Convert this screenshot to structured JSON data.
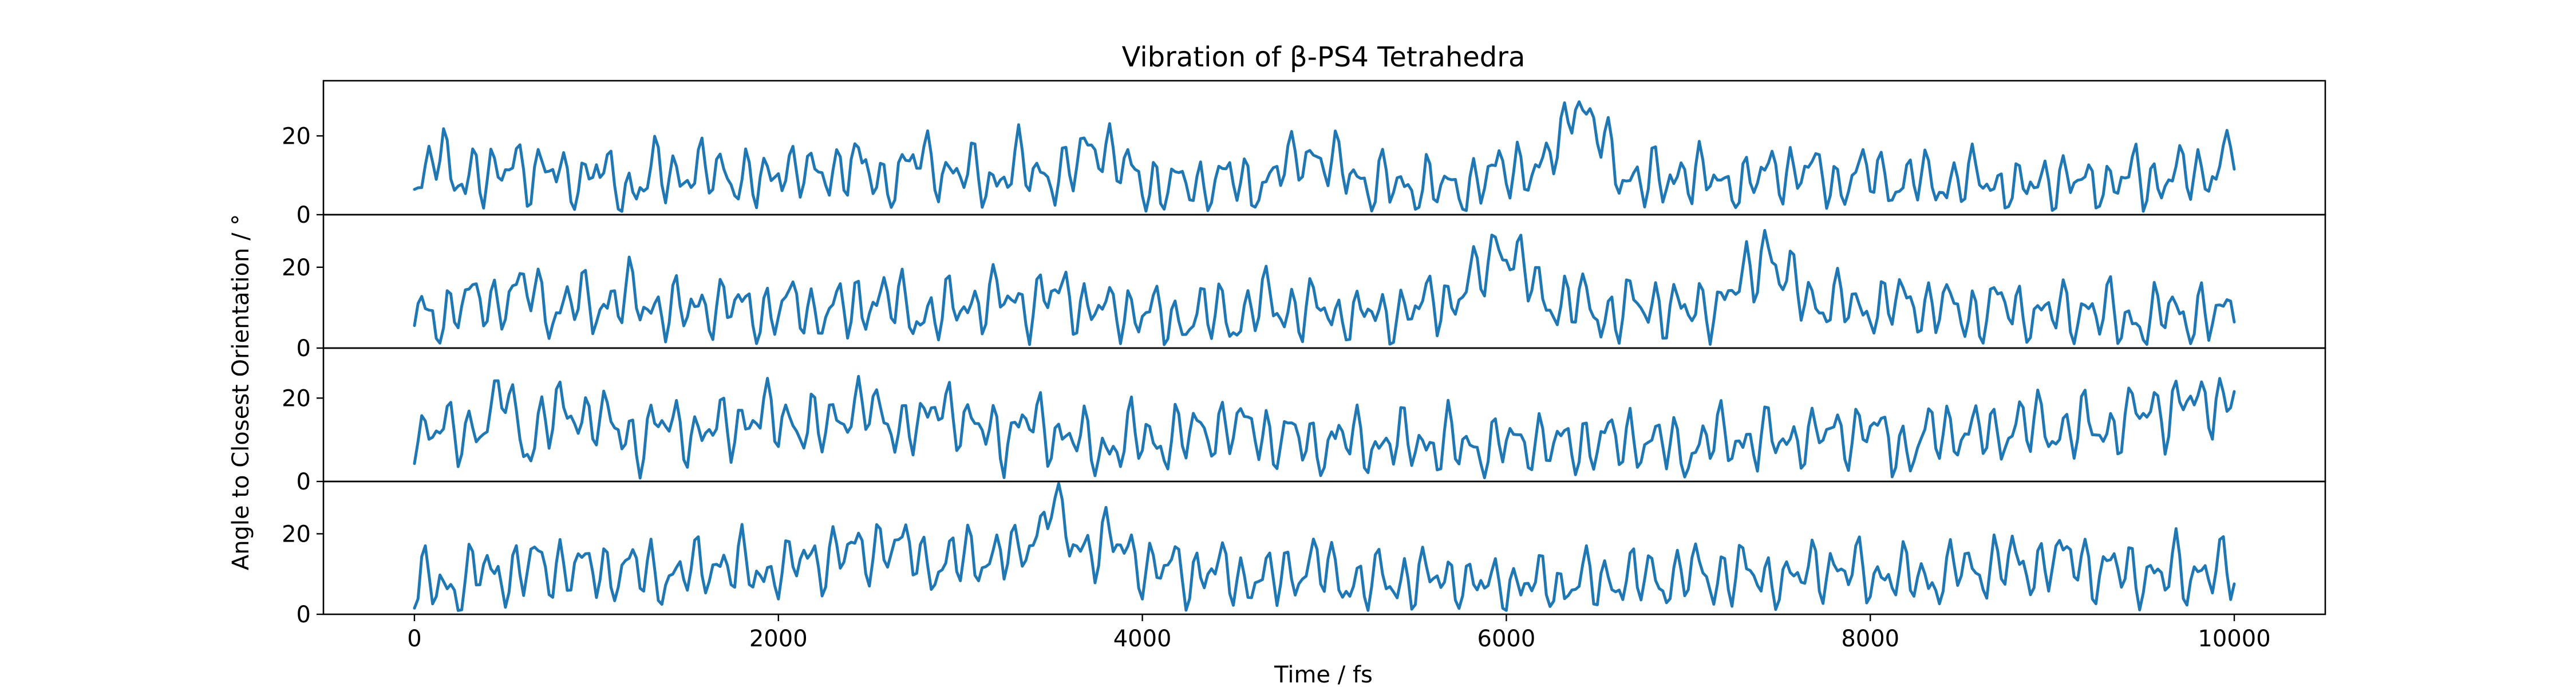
{
  "chart_data": {
    "type": "line",
    "title": "Vibration of β-PS4 Tetrahedra",
    "xlabel": "Time / fs",
    "ylabel": "Angle to Closest Orientation / °",
    "xlim": [
      -500,
      10500
    ],
    "x_ticks": [
      0,
      2000,
      4000,
      6000,
      8000,
      10000
    ],
    "x_tick_labels": [
      "0",
      "2000",
      "4000",
      "6000",
      "8000",
      "10000"
    ],
    "y_ticks": [
      0,
      20
    ],
    "y_tick_labels": [
      "0",
      "20"
    ],
    "grid": false,
    "legend": "none",
    "line_color": "#1f77b4",
    "x_step_fs": 20,
    "panels": [
      {
        "ylim": [
          0,
          34
        ],
        "anchors": [
          [
            0,
            10
          ],
          [
            100,
            12
          ],
          [
            150,
            19
          ],
          [
            200,
            7
          ],
          [
            300,
            12
          ],
          [
            450,
            7
          ],
          [
            550,
            16
          ],
          [
            650,
            9
          ],
          [
            800,
            12
          ],
          [
            900,
            7
          ],
          [
            1000,
            11
          ],
          [
            1200,
            7
          ],
          [
            1400,
            12
          ],
          [
            1600,
            9
          ],
          [
            1700,
            11
          ],
          [
            1900,
            8
          ],
          [
            2000,
            13
          ],
          [
            2200,
            9
          ],
          [
            2400,
            13
          ],
          [
            2600,
            8
          ],
          [
            2800,
            14
          ],
          [
            3000,
            10
          ],
          [
            3200,
            8
          ],
          [
            3400,
            12
          ],
          [
            3600,
            10
          ],
          [
            3750,
            18
          ],
          [
            3900,
            11
          ],
          [
            4000,
            8
          ],
          [
            4200,
            7
          ],
          [
            4400,
            9
          ],
          [
            4600,
            8
          ],
          [
            4800,
            12
          ],
          [
            4900,
            16
          ],
          [
            5000,
            13
          ],
          [
            5200,
            9
          ],
          [
            5400,
            7
          ],
          [
            5600,
            7
          ],
          [
            5800,
            8
          ],
          [
            6000,
            11
          ],
          [
            6200,
            12
          ],
          [
            6300,
            19
          ],
          [
            6380,
            31
          ],
          [
            6450,
            26
          ],
          [
            6500,
            21
          ],
          [
            6600,
            13
          ],
          [
            6700,
            10
          ],
          [
            6800,
            9
          ],
          [
            7000,
            10
          ],
          [
            7200,
            8
          ],
          [
            7400,
            9
          ],
          [
            7600,
            11
          ],
          [
            7800,
            9
          ],
          [
            8000,
            10
          ],
          [
            8200,
            7
          ],
          [
            8400,
            8
          ],
          [
            8600,
            9
          ],
          [
            8800,
            7
          ],
          [
            9000,
            9
          ],
          [
            9200,
            8
          ],
          [
            9400,
            10
          ],
          [
            9600,
            9
          ],
          [
            9800,
            9
          ],
          [
            10000,
            16
          ]
        ],
        "amplitudes": [
          4.5,
          3.5,
          2.2
        ]
      },
      {
        "ylim": [
          0,
          33
        ],
        "anchors": [
          [
            0,
            7
          ],
          [
            200,
            9
          ],
          [
            400,
            11
          ],
          [
            600,
            14
          ],
          [
            800,
            9
          ],
          [
            1000,
            11
          ],
          [
            1200,
            13
          ],
          [
            1300,
            10
          ],
          [
            1500,
            9
          ],
          [
            1700,
            11
          ],
          [
            1900,
            8
          ],
          [
            2100,
            11
          ],
          [
            2300,
            8
          ],
          [
            2500,
            11
          ],
          [
            2700,
            10
          ],
          [
            2900,
            9
          ],
          [
            3100,
            12
          ],
          [
            3300,
            10
          ],
          [
            3500,
            14
          ],
          [
            3700,
            9
          ],
          [
            3900,
            10
          ],
          [
            4100,
            7
          ],
          [
            4300,
            9
          ],
          [
            4500,
            8
          ],
          [
            4700,
            10
          ],
          [
            4900,
            9
          ],
          [
            5100,
            8
          ],
          [
            5300,
            7
          ],
          [
            5500,
            10
          ],
          [
            5700,
            12
          ],
          [
            5800,
            16
          ],
          [
            5900,
            22
          ],
          [
            5950,
            28
          ],
          [
            6050,
            20
          ],
          [
            6200,
            13
          ],
          [
            6400,
            10
          ],
          [
            6600,
            9
          ],
          [
            6800,
            11
          ],
          [
            7000,
            9
          ],
          [
            7200,
            12
          ],
          [
            7350,
            18
          ],
          [
            7430,
            26
          ],
          [
            7500,
            17
          ],
          [
            7700,
            12
          ],
          [
            7900,
            9
          ],
          [
            8100,
            10
          ],
          [
            8300,
            11
          ],
          [
            8500,
            9
          ],
          [
            8700,
            10
          ],
          [
            8900,
            8
          ],
          [
            9100,
            10
          ],
          [
            9300,
            8
          ],
          [
            9500,
            7
          ],
          [
            9700,
            9
          ],
          [
            9900,
            8
          ],
          [
            10000,
            11
          ]
        ],
        "amplitudes": [
          4.5,
          3.5,
          2.2
        ]
      },
      {
        "ylim": [
          0,
          32
        ],
        "anchors": [
          [
            0,
            13
          ],
          [
            200,
            11
          ],
          [
            400,
            15
          ],
          [
            500,
            20
          ],
          [
            600,
            9
          ],
          [
            700,
            12
          ],
          [
            800,
            16
          ],
          [
            1000,
            14
          ],
          [
            1200,
            11
          ],
          [
            1400,
            15
          ],
          [
            1600,
            12
          ],
          [
            1800,
            14
          ],
          [
            2000,
            16
          ],
          [
            2200,
            13
          ],
          [
            2400,
            17
          ],
          [
            2600,
            15
          ],
          [
            2800,
            13
          ],
          [
            2900,
            19
          ],
          [
            3000,
            14
          ],
          [
            3200,
            12
          ],
          [
            3400,
            14
          ],
          [
            3600,
            11
          ],
          [
            3700,
            8
          ],
          [
            3900,
            10
          ],
          [
            4100,
            9
          ],
          [
            4300,
            12
          ],
          [
            4500,
            14
          ],
          [
            4700,
            11
          ],
          [
            4900,
            9
          ],
          [
            5100,
            10
          ],
          [
            5300,
            9
          ],
          [
            5500,
            10
          ],
          [
            5700,
            8
          ],
          [
            5900,
            9
          ],
          [
            6100,
            10
          ],
          [
            6300,
            8
          ],
          [
            6500,
            9
          ],
          [
            6700,
            10
          ],
          [
            6900,
            8
          ],
          [
            7100,
            9
          ],
          [
            7300,
            10
          ],
          [
            7500,
            9
          ],
          [
            7700,
            11
          ],
          [
            7900,
            13
          ],
          [
            8100,
            11
          ],
          [
            8200,
            8
          ],
          [
            8400,
            12
          ],
          [
            8600,
            10
          ],
          [
            8800,
            12
          ],
          [
            9000,
            14
          ],
          [
            9200,
            12
          ],
          [
            9400,
            15
          ],
          [
            9600,
            17
          ],
          [
            9800,
            18
          ],
          [
            9900,
            20
          ],
          [
            10000,
            22
          ]
        ],
        "amplitudes": [
          4.5,
          3.5,
          2.2
        ]
      },
      {
        "ylim": [
          0,
          33
        ],
        "anchors": [
          [
            0,
            6
          ],
          [
            200,
            8
          ],
          [
            400,
            10
          ],
          [
            600,
            11
          ],
          [
            800,
            12
          ],
          [
            1000,
            10
          ],
          [
            1200,
            11
          ],
          [
            1400,
            9
          ],
          [
            1600,
            11
          ],
          [
            1700,
            13
          ],
          [
            1900,
            10
          ],
          [
            2100,
            12
          ],
          [
            2300,
            14
          ],
          [
            2500,
            16
          ],
          [
            2700,
            15
          ],
          [
            2900,
            13
          ],
          [
            3100,
            14
          ],
          [
            3300,
            15
          ],
          [
            3450,
            22
          ],
          [
            3500,
            30
          ],
          [
            3600,
            18
          ],
          [
            3700,
            15
          ],
          [
            3850,
            17
          ],
          [
            3950,
            14
          ],
          [
            4100,
            12
          ],
          [
            4300,
            11
          ],
          [
            4500,
            10
          ],
          [
            4700,
            9
          ],
          [
            4900,
            11
          ],
          [
            5100,
            9
          ],
          [
            5300,
            8
          ],
          [
            5500,
            9
          ],
          [
            5700,
            8
          ],
          [
            5900,
            7
          ],
          [
            6100,
            8
          ],
          [
            6300,
            7
          ],
          [
            6500,
            8
          ],
          [
            6700,
            9
          ],
          [
            6900,
            10
          ],
          [
            7100,
            9
          ],
          [
            7300,
            10
          ],
          [
            7500,
            9
          ],
          [
            7700,
            11
          ],
          [
            7900,
            10
          ],
          [
            8100,
            9
          ],
          [
            8300,
            10
          ],
          [
            8500,
            11
          ],
          [
            8700,
            12
          ],
          [
            8900,
            12
          ],
          [
            9100,
            13
          ],
          [
            9300,
            11
          ],
          [
            9500,
            10
          ],
          [
            9700,
            11
          ],
          [
            9900,
            10
          ],
          [
            10000,
            9
          ]
        ],
        "amplitudes": [
          4.5,
          3.5,
          2.2
        ]
      }
    ]
  }
}
